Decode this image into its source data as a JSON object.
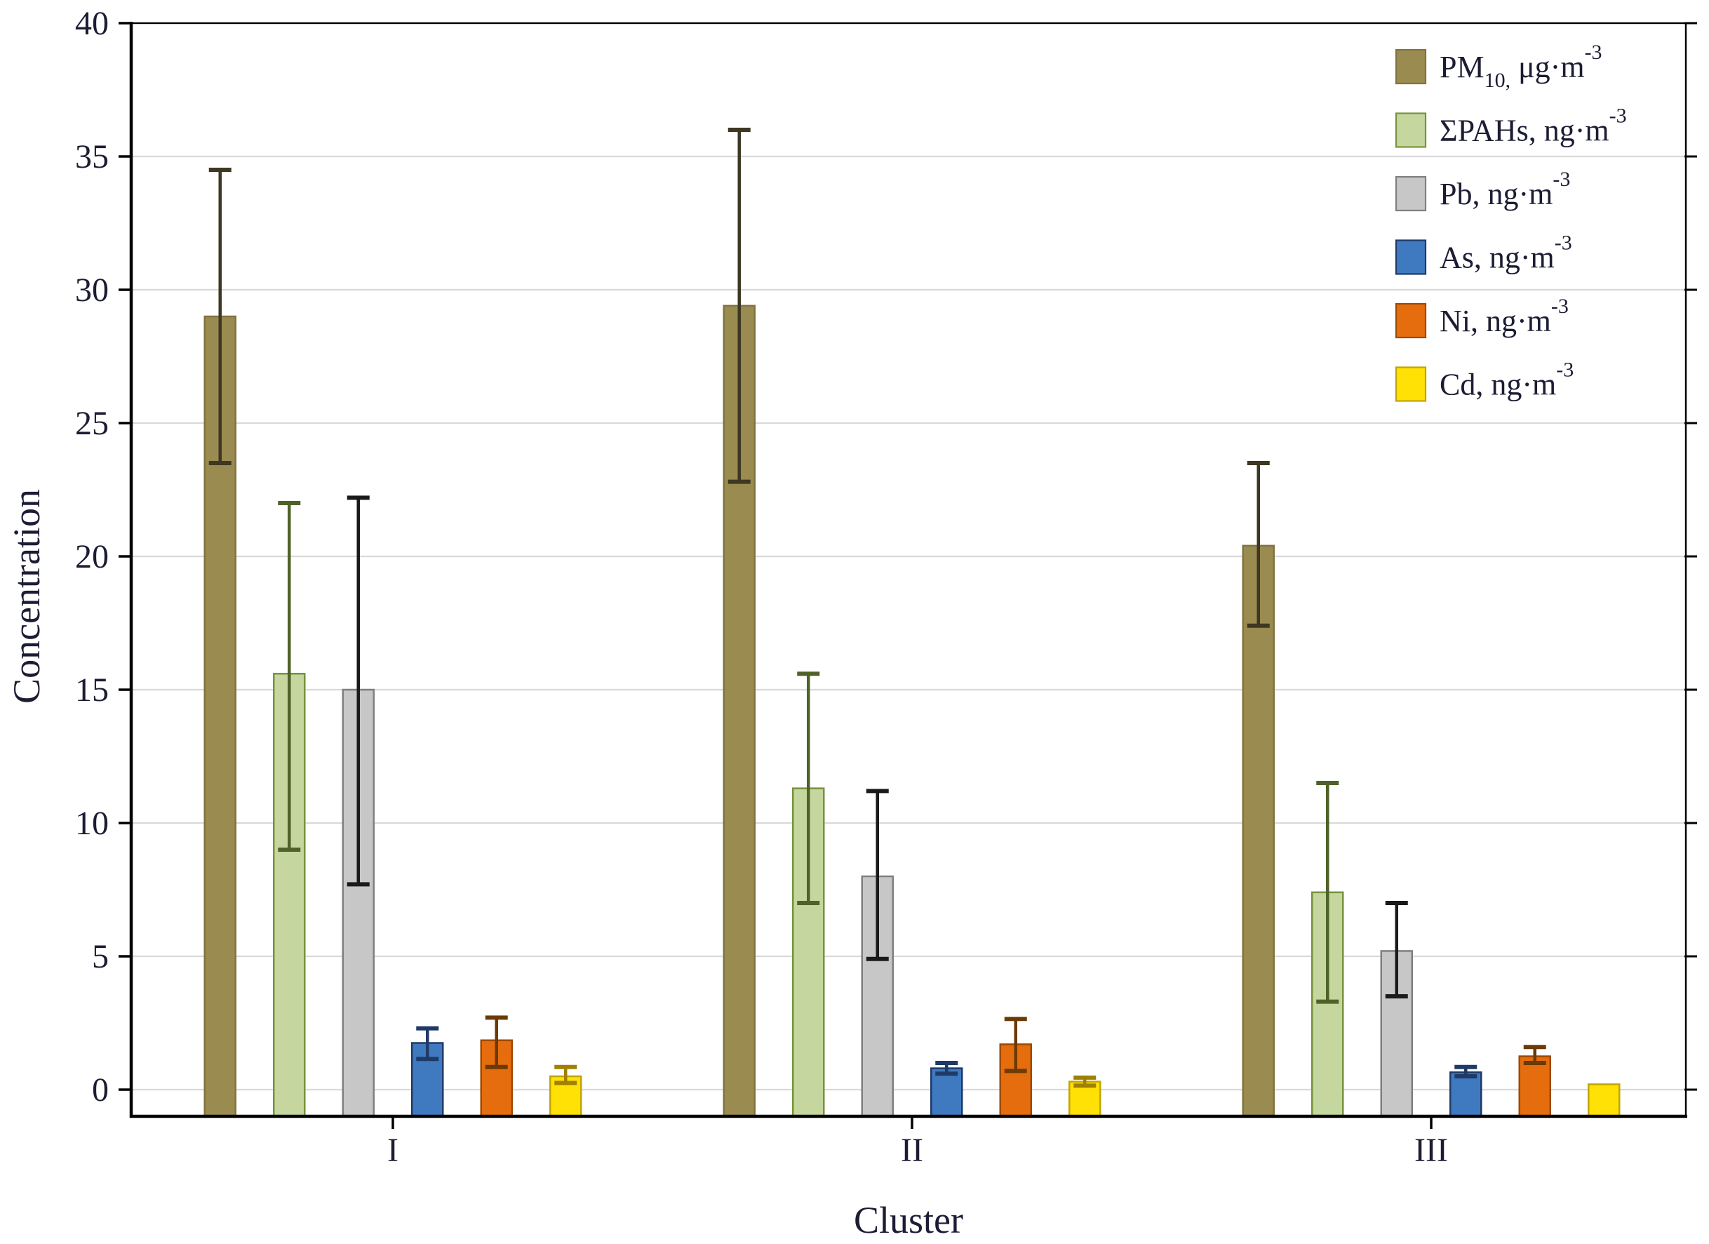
{
  "figure": {
    "background": "#ffffff"
  },
  "chart_data": {
    "type": "bar",
    "title": "",
    "xlabel": "Cluster",
    "ylabel": "Concentration",
    "categories": [
      "I",
      "II",
      "III"
    ],
    "ylim": [
      -1,
      40
    ],
    "yticks": [
      0,
      5,
      10,
      15,
      20,
      25,
      30,
      35,
      40
    ],
    "grid": "horizontal",
    "grid_color": "#d9d9d9",
    "frame_color": "#000000",
    "text_color": "#1c1c34",
    "legend_position": "top-right-inside",
    "series": [
      {
        "name": "PM10",
        "legend_label": "PM10, μg·m-3",
        "label_parts": [
          {
            "t": "PM",
            "pos": "n"
          },
          {
            "t": "10,",
            "pos": "sub"
          },
          {
            "t": " μg·m",
            "pos": "n"
          },
          {
            "t": "-3",
            "pos": "sup"
          }
        ],
        "color": "#9a8b50",
        "border": "#81733f",
        "err_color": "#3d3723",
        "values": [
          29.0,
          29.4,
          20.4
        ],
        "err_lo": [
          23.5,
          22.8,
          17.4
        ],
        "err_hi": [
          34.5,
          36.0,
          23.5
        ]
      },
      {
        "name": "SPAHs",
        "legend_label": "ΣPAHs, ng·m-3",
        "label_parts": [
          {
            "t": "ΣPAHs, ng·m",
            "pos": "n"
          },
          {
            "t": "-3",
            "pos": "sup"
          }
        ],
        "color": "#c5d79e",
        "border": "#77933c",
        "err_color": "#4f6228",
        "values": [
          15.6,
          11.3,
          7.4
        ],
        "err_lo": [
          9.0,
          7.0,
          3.3
        ],
        "err_hi": [
          22.0,
          15.6,
          11.5
        ]
      },
      {
        "name": "Pb",
        "legend_label": "Pb, ng·m-3",
        "label_parts": [
          {
            "t": "Pb, ng·m",
            "pos": "n"
          },
          {
            "t": "-3",
            "pos": "sup"
          }
        ],
        "color": "#c7c7c7",
        "border": "#7f7f7f",
        "err_color": "#1a1a1a",
        "values": [
          15.0,
          8.0,
          5.2
        ],
        "err_lo": [
          7.7,
          4.9,
          3.5
        ],
        "err_hi": [
          22.2,
          11.2,
          7.0
        ]
      },
      {
        "name": "As",
        "legend_label": "As, ng·m-3",
        "label_parts": [
          {
            "t": "As, ng·m",
            "pos": "n"
          },
          {
            "t": "-3",
            "pos": "sup"
          }
        ],
        "color": "#3f7ac0",
        "border": "#1f3a67",
        "err_color": "#1f3a67",
        "values": [
          1.75,
          0.8,
          0.65
        ],
        "err_lo": [
          1.15,
          0.6,
          0.5
        ],
        "err_hi": [
          2.3,
          1.0,
          0.85
        ]
      },
      {
        "name": "Ni",
        "legend_label": "Ni, ng·m-3",
        "label_parts": [
          {
            "t": "Ni, ng·m",
            "pos": "n"
          },
          {
            "t": "-3",
            "pos": "sup"
          }
        ],
        "color": "#e66d0d",
        "border": "#9c4a06",
        "err_color": "#6b3a05",
        "values": [
          1.85,
          1.7,
          1.25
        ],
        "err_lo": [
          0.85,
          0.7,
          1.0
        ],
        "err_hi": [
          2.7,
          2.65,
          1.6
        ]
      },
      {
        "name": "Cd",
        "legend_label": "Cd, ng·m-3",
        "label_parts": [
          {
            "t": "Cd, ng·m",
            "pos": "n"
          },
          {
            "t": "-3",
            "pos": "sup"
          }
        ],
        "color": "#ffe106",
        "border": "#c2a400",
        "err_color": "#a08000",
        "values": [
          0.5,
          0.3,
          0.2
        ],
        "err_lo": [
          0.25,
          0.15,
          null
        ],
        "err_hi": [
          0.85,
          0.45,
          null
        ]
      }
    ]
  }
}
